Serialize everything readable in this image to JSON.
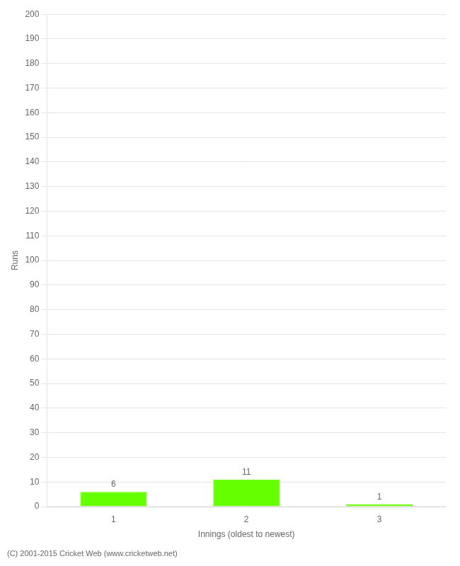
{
  "chart_data": {
    "type": "bar",
    "categories": [
      1,
      2,
      3
    ],
    "values": [
      6,
      11,
      1
    ],
    "color": "#66ff00",
    "xlabel": "Innings (oldest to newest)",
    "ylabel": "Runs",
    "ylim": [
      0,
      200
    ],
    "yticks": [
      0,
      10,
      20,
      30,
      40,
      50,
      60,
      70,
      80,
      90,
      100,
      110,
      120,
      130,
      140,
      150,
      160,
      170,
      180,
      190,
      200
    ],
    "grid": true,
    "data_labels": true,
    "footer": "(C) 2001-2015 Cricket Web (www.cricketweb.net)"
  }
}
